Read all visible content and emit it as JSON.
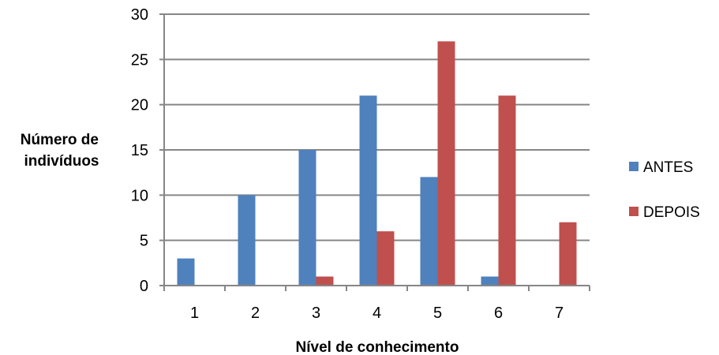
{
  "chart_data": {
    "type": "bar",
    "categories": [
      "1",
      "2",
      "3",
      "4",
      "5",
      "6",
      "7"
    ],
    "series": [
      {
        "name": "ANTES",
        "color": "#4f81bd",
        "values": [
          3,
          10,
          15,
          21,
          12,
          1,
          0
        ]
      },
      {
        "name": "DEPOIS",
        "color": "#c0504d",
        "values": [
          0,
          0,
          1,
          6,
          27,
          21,
          7
        ]
      }
    ],
    "title": "",
    "xlabel": "Nível de conhecimento",
    "ylabel": "Número de indivíduos",
    "ylabel_lines": [
      "Número de",
      "indivíduos"
    ],
    "ylim": [
      0,
      30
    ],
    "yticks": [
      0,
      5,
      10,
      15,
      20,
      25,
      30
    ],
    "grid": true,
    "grid_color": "#868686",
    "legend_position": "right"
  }
}
